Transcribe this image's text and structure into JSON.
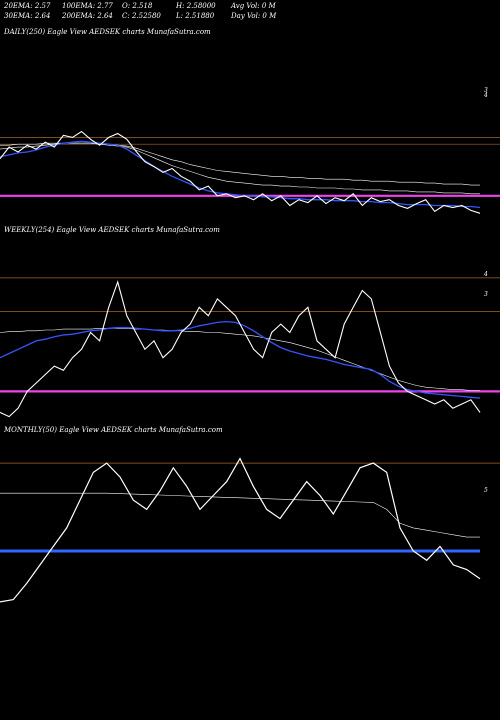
{
  "stats": {
    "ema20": "20EMA: 2.57",
    "ema100": "100EMA: 2.77",
    "open": "O: 2.518",
    "high": "H: 2.58000",
    "avgvol": "Avg Vol: 0  M",
    "ema30": "30EMA: 2.64",
    "ema200": "200EMA: 2.64",
    "close": "C: 2.52580",
    "low": "L: 2.51880",
    "dayvol": "Day Vol: 0  M"
  },
  "panels": {
    "daily": "DAILY(250) Eagle  View  AEDSEK charts MunafaSutra.com",
    "weekly": "WEEKLY(254) Eagle  View  AEDSEK charts MunafaSutra.com",
    "monthly": "MONTHLY(50) Eagle  View  AEDSEK charts MunafaSutra.com"
  },
  "colors": {
    "price": "#ffffff",
    "ema_fast": "#3355ff",
    "ema_slow": "#ffffff",
    "support": "#ee44ee",
    "resistance": "#aa6622",
    "monthly_ma": "#3366ff"
  },
  "chart_data": [
    {
      "type": "line",
      "title": "DAILY(250) Eagle  View  AEDSEK charts MunafaSutra.com",
      "ylim": [
        2.3,
        4.2
      ],
      "yticks": [
        "3",
        "4"
      ],
      "hlines": [
        {
          "value": 3.2,
          "color": "#aa6622"
        },
        {
          "value": 3.13,
          "color": "#aa6622"
        },
        {
          "value": 2.6,
          "color": "#ee44ee"
        }
      ],
      "series": [
        {
          "values": [
            2.98,
            3.1,
            3.05,
            3.12,
            3.08,
            3.15,
            3.1,
            3.22,
            3.2,
            3.26,
            3.18,
            3.12,
            3.2,
            3.24,
            3.18,
            3.06,
            2.95,
            2.9,
            2.84,
            2.88,
            2.8,
            2.75,
            2.66,
            2.7,
            2.6,
            2.62,
            2.58,
            2.6,
            2.56,
            2.62,
            2.55,
            2.6,
            2.5,
            2.56,
            2.53,
            2.6,
            2.52,
            2.58,
            2.55,
            2.62,
            2.5,
            2.58,
            2.54,
            2.56,
            2.5,
            2.47,
            2.52,
            2.56,
            2.44,
            2.5,
            2.48,
            2.5,
            2.45,
            2.42
          ]
        },
        {
          "values": [
            3.0,
            3.02,
            3.04,
            3.05,
            3.07,
            3.1,
            3.12,
            3.14,
            3.15,
            3.16,
            3.15,
            3.14,
            3.13,
            3.12,
            3.08,
            3.02,
            2.96,
            2.9,
            2.85,
            2.8,
            2.76,
            2.72,
            2.68,
            2.65,
            2.63,
            2.62,
            2.61,
            2.6,
            2.6,
            2.59,
            2.59,
            2.58,
            2.57,
            2.57,
            2.56,
            2.56,
            2.56,
            2.55,
            2.55,
            2.55,
            2.54,
            2.54,
            2.53,
            2.53,
            2.52,
            2.51,
            2.51,
            2.51,
            2.5,
            2.5,
            2.5,
            2.49,
            2.49,
            2.48
          ]
        },
        {
          "values": [
            3.08,
            3.09,
            3.1,
            3.1,
            3.11,
            3.12,
            3.13,
            3.14,
            3.14,
            3.14,
            3.14,
            3.13,
            3.12,
            3.11,
            3.1,
            3.07,
            3.03,
            2.99,
            2.95,
            2.91,
            2.88,
            2.85,
            2.82,
            2.79,
            2.77,
            2.75,
            2.74,
            2.73,
            2.72,
            2.71,
            2.71,
            2.7,
            2.7,
            2.69,
            2.69,
            2.68,
            2.68,
            2.68,
            2.67,
            2.67,
            2.66,
            2.66,
            2.66,
            2.65,
            2.65,
            2.65,
            2.64,
            2.64,
            2.64,
            2.63,
            2.63,
            2.63,
            2.62,
            2.62
          ]
        },
        {
          "values": [
            3.12,
            3.12,
            3.13,
            3.13,
            3.13,
            3.14,
            3.14,
            3.14,
            3.14,
            3.14,
            3.14,
            3.13,
            3.13,
            3.12,
            3.11,
            3.09,
            3.06,
            3.03,
            3.0,
            2.97,
            2.95,
            2.92,
            2.9,
            2.88,
            2.86,
            2.85,
            2.84,
            2.83,
            2.82,
            2.81,
            2.8,
            2.8,
            2.79,
            2.79,
            2.78,
            2.78,
            2.77,
            2.77,
            2.77,
            2.76,
            2.76,
            2.75,
            2.75,
            2.75,
            2.74,
            2.74,
            2.74,
            2.73,
            2.73,
            2.72,
            2.72,
            2.72,
            2.71,
            2.71
          ]
        }
      ]
    },
    {
      "type": "line",
      "title": "WEEKLY(254) Eagle  View  AEDSEK charts MunafaSutra.com",
      "ylim": [
        2.2,
        4.4
      ],
      "yticks": [
        "4",
        "3"
      ],
      "hlines": [
        {
          "value": 3.95,
          "color": "#aa6622"
        },
        {
          "value": 3.55,
          "color": "#aa6622"
        },
        {
          "value": 2.6,
          "color": "#ee44ee"
        }
      ],
      "series": [
        {
          "values": [
            2.35,
            2.3,
            2.4,
            2.6,
            2.7,
            2.8,
            2.9,
            2.85,
            3.0,
            3.1,
            3.3,
            3.2,
            3.6,
            3.9,
            3.5,
            3.3,
            3.1,
            3.2,
            3.0,
            3.1,
            3.3,
            3.4,
            3.6,
            3.5,
            3.7,
            3.6,
            3.5,
            3.3,
            3.1,
            3.0,
            3.3,
            3.4,
            3.3,
            3.5,
            3.6,
            3.2,
            3.1,
            3.0,
            3.4,
            3.6,
            3.8,
            3.7,
            3.3,
            2.9,
            2.7,
            2.6,
            2.55,
            2.5,
            2.45,
            2.5,
            2.4,
            2.45,
            2.5,
            2.35
          ]
        },
        {
          "values": [
            3.0,
            3.05,
            3.1,
            3.15,
            3.2,
            3.22,
            3.25,
            3.27,
            3.28,
            3.3,
            3.32,
            3.33,
            3.35,
            3.36,
            3.36,
            3.35,
            3.34,
            3.33,
            3.32,
            3.32,
            3.33,
            3.35,
            3.38,
            3.4,
            3.42,
            3.43,
            3.42,
            3.38,
            3.32,
            3.25,
            3.18,
            3.12,
            3.08,
            3.05,
            3.02,
            3.0,
            2.98,
            2.95,
            2.92,
            2.9,
            2.88,
            2.86,
            2.8,
            2.72,
            2.66,
            2.62,
            2.6,
            2.58,
            2.57,
            2.56,
            2.55,
            2.54,
            2.53,
            2.52
          ]
        },
        {
          "values": [
            3.3,
            3.31,
            3.31,
            3.32,
            3.32,
            3.33,
            3.33,
            3.34,
            3.34,
            3.34,
            3.34,
            3.35,
            3.35,
            3.35,
            3.35,
            3.34,
            3.34,
            3.33,
            3.33,
            3.32,
            3.32,
            3.31,
            3.31,
            3.3,
            3.3,
            3.29,
            3.28,
            3.27,
            3.26,
            3.24,
            3.22,
            3.2,
            3.18,
            3.15,
            3.12,
            3.09,
            3.05,
            3.01,
            2.97,
            2.93,
            2.89,
            2.85,
            2.81,
            2.77,
            2.73,
            2.7,
            2.67,
            2.65,
            2.64,
            2.63,
            2.62,
            2.62,
            2.61,
            2.61
          ]
        }
      ]
    },
    {
      "type": "line",
      "title": "MONTHLY(50) Eagle  View  AEDSEK charts MunafaSutra.com",
      "ylim": [
        1.5,
        5.5
      ],
      "yticks": [
        "5"
      ],
      "hlines": [
        {
          "value": 5.0,
          "color": "#aa6622"
        }
      ],
      "series": [
        {
          "values": [
            2.0,
            2.05,
            2.4,
            2.8,
            3.2,
            3.6,
            4.2,
            4.8,
            5.0,
            4.7,
            4.2,
            4.0,
            4.4,
            4.9,
            4.5,
            4.0,
            4.3,
            4.6,
            5.1,
            4.5,
            4.0,
            3.8,
            4.2,
            4.6,
            4.3,
            3.9,
            4.4,
            4.9,
            5.0,
            4.8,
            3.6,
            3.1,
            2.9,
            3.2,
            2.8,
            2.7,
            2.5
          ]
        },
        {
          "values": [
            3.1,
            3.1,
            3.1,
            3.1,
            3.1,
            3.1,
            3.1,
            3.1,
            3.1,
            3.1,
            3.1,
            3.1,
            3.1,
            3.1,
            3.1,
            3.1,
            3.1,
            3.1,
            3.1,
            3.1,
            3.1,
            3.1,
            3.1,
            3.1,
            3.1,
            3.1,
            3.1,
            3.1,
            3.1,
            3.1,
            3.1,
            3.1,
            3.1,
            3.1,
            3.1,
            3.1,
            3.1
          ]
        },
        {
          "values": [
            4.35,
            4.35,
            4.35,
            4.35,
            4.35,
            4.35,
            4.35,
            4.35,
            4.35,
            4.34,
            4.33,
            4.32,
            4.31,
            4.3,
            4.29,
            4.28,
            4.27,
            4.26,
            4.25,
            4.24,
            4.23,
            4.22,
            4.21,
            4.2,
            4.19,
            4.18,
            4.17,
            4.16,
            4.15,
            4.0,
            3.7,
            3.6,
            3.55,
            3.5,
            3.45,
            3.4,
            3.4
          ]
        }
      ]
    }
  ]
}
